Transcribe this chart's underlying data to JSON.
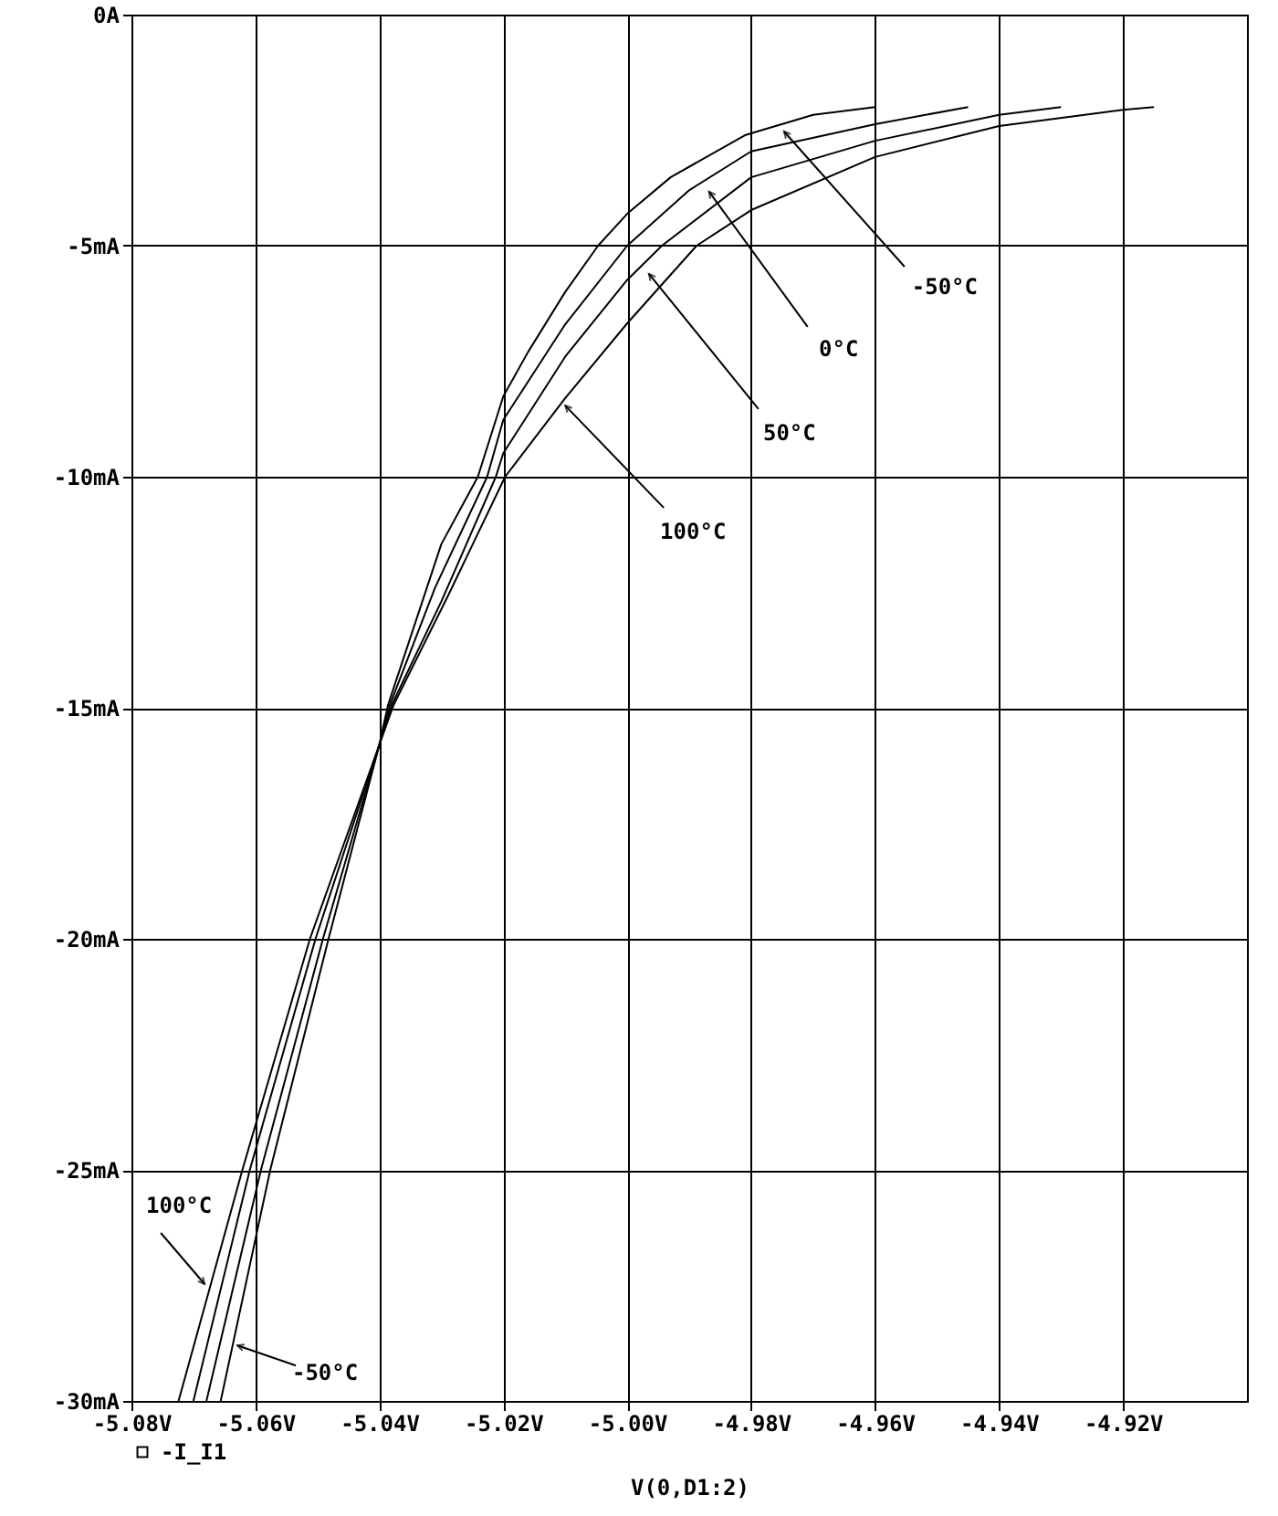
{
  "chart_data": {
    "type": "line",
    "xlabel": "V(0,D1:2)",
    "xlim": [
      -5.08,
      -4.9
    ],
    "xticks": [
      {
        "value": -5.08,
        "label": "-5.08V"
      },
      {
        "value": -5.06,
        "label": "-5.06V"
      },
      {
        "value": -5.04,
        "label": "-5.04V"
      },
      {
        "value": -5.02,
        "label": "-5.02V"
      },
      {
        "value": -5.0,
        "label": "-5.00V"
      },
      {
        "value": -4.98,
        "label": "-4.98V"
      },
      {
        "value": -4.96,
        "label": "-4.96V"
      },
      {
        "value": -4.94,
        "label": "-4.94V"
      },
      {
        "value": -4.92,
        "label": "-4.92V"
      }
    ],
    "ylim": [
      -30,
      0
    ],
    "yticks": [
      {
        "value": 0,
        "label": "0A"
      },
      {
        "value": -5,
        "label": "-5mA"
      },
      {
        "value": -10,
        "label": "-10mA"
      },
      {
        "value": -15,
        "label": "-15mA"
      },
      {
        "value": -20,
        "label": "-20mA"
      },
      {
        "value": -25,
        "label": "-25mA"
      },
      {
        "value": -30,
        "label": "-30mA"
      }
    ],
    "grid": true,
    "legend": "bottom left",
    "series": [
      {
        "name": "-I_I1",
        "color": "#000000",
        "x": [
          -5.0656,
          -5.0576,
          -5.0482,
          -5.04,
          -5.0386,
          -5.03,
          -5.0241,
          -5.02,
          -5.016,
          -5.01,
          -5.0047,
          -5.0,
          -4.993,
          -4.981,
          -4.97,
          -4.96
        ],
        "values": [
          -30,
          -25,
          -20,
          -15.8,
          -14.94,
          -11.46,
          -10,
          -8.26,
          -7.3,
          -6.0,
          -5.0,
          -4.31,
          -3.52,
          -2.61,
          -2.17,
          -2.0
        ]
      },
      {
        "color": "#000000",
        "x": [
          -5.0679,
          -5.0591,
          -5.0491,
          -5.04,
          -5.0383,
          -5.031,
          -5.0226,
          -5.02,
          -5.01,
          -5.0,
          -4.99,
          -4.98,
          -4.96,
          -4.945
        ],
        "values": [
          -30,
          -25,
          -20,
          -15.8,
          -14.94,
          -12.4,
          -10,
          -8.77,
          -6.7,
          -5.0,
          -3.8,
          -2.96,
          -2.37,
          -2.0
        ]
      },
      {
        "color": "#000000",
        "x": [
          -5.07,
          -5.0609,
          -5.0503,
          -5.04,
          -5.038,
          -5.03,
          -5.0212,
          -5.02,
          -5.01,
          -5.0,
          -4.9944,
          -4.98,
          -4.96,
          -4.94,
          -4.93
        ],
        "values": [
          -30,
          -25,
          -20,
          -15.8,
          -14.94,
          -12.7,
          -10,
          -9.49,
          -7.4,
          -5.74,
          -5.0,
          -3.52,
          -2.73,
          -2.17,
          -2.0
        ]
      },
      {
        "color": "#000000",
        "x": [
          -5.0724,
          -5.0621,
          -5.0512,
          -5.04,
          -5.0377,
          -5.029,
          -5.0197,
          -5.01,
          -5.0,
          -4.9888,
          -4.98,
          -4.96,
          -4.94,
          -4.92,
          -4.915
        ],
        "values": [
          -30,
          -25,
          -20,
          -15.8,
          -14.94,
          -12.6,
          -10,
          -8.3,
          -6.68,
          -5.0,
          -4.23,
          -3.08,
          -2.41,
          -2.06,
          -2.0
        ]
      }
    ],
    "annotations": [
      {
        "text": "-50°C",
        "x": -4.9747,
        "y": -2.53
      },
      {
        "text": "0°C",
        "x": -4.9868,
        "y": -3.83
      },
      {
        "text": "50°C",
        "x": -4.9965,
        "y": -5.61
      },
      {
        "text": "100°C",
        "x": -5.01,
        "y": -8.46
      },
      {
        "text": "100°C",
        "x": -5.0682,
        "y": -27.47
      },
      {
        "text": "-50°C",
        "x": -5.0629,
        "y": -28.8
      }
    ]
  }
}
